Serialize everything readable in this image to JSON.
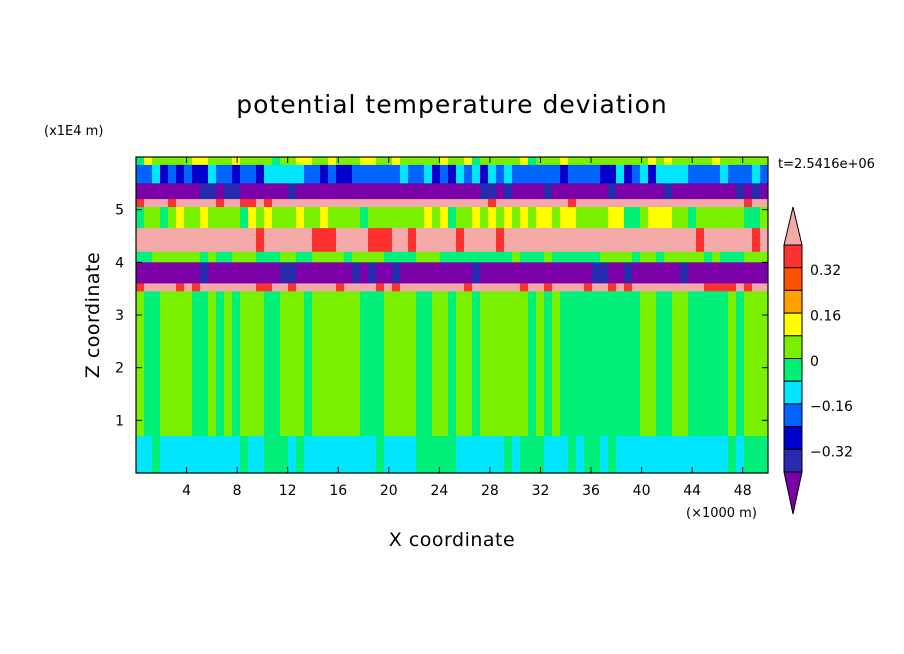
{
  "chart_data": {
    "type": "heatmap",
    "title": "potential temperature deviation",
    "xlabel": "X coordinate",
    "ylabel": "Z coordinate",
    "x_unit": "(×1000 m)",
    "y_unit": "(x1E4 m)",
    "time_label": "t=2.5416e+06",
    "xlim": [
      0,
      50
    ],
    "ylim": [
      0,
      6
    ],
    "x_ticks": [
      4,
      8,
      12,
      16,
      20,
      24,
      28,
      32,
      36,
      40,
      44,
      48
    ],
    "y_ticks": [
      1,
      2,
      3,
      4,
      5
    ],
    "colorbar": {
      "levels": [
        -0.4,
        -0.32,
        -0.24,
        -0.16,
        -0.08,
        0,
        0.08,
        0.16,
        0.24,
        0.32,
        0.4
      ],
      "tick_values": [
        "0.32",
        "0.16",
        "0",
        "−0.16",
        "−0.32"
      ],
      "colors": [
        "#7a00a8",
        "#2a2ab0",
        "#0000cc",
        "#0064ff",
        "#00e6ff",
        "#00f07a",
        "#78f000",
        "#ffff00",
        "#ffa000",
        "#ff5000",
        "#ff3030",
        "#f4a8a8"
      ],
      "extend": "both"
    },
    "bands": [
      {
        "z": [
          5.85,
          6.0
        ],
        "value": 0.05
      },
      {
        "z": [
          5.5,
          5.85
        ],
        "value": -0.2
      },
      {
        "z": [
          5.2,
          5.5
        ],
        "value": -0.44
      },
      {
        "z": [
          5.05,
          5.2
        ],
        "value": 0.44
      },
      {
        "z": [
          4.65,
          5.05
        ],
        "value": 0.05
      },
      {
        "z": [
          4.2,
          4.65
        ],
        "value": 0.44
      },
      {
        "z": [
          4.0,
          4.2
        ],
        "value": 0.0
      },
      {
        "z": [
          3.6,
          4.0
        ],
        "value": -0.44
      },
      {
        "z": [
          3.45,
          3.6
        ],
        "value": 0.44
      },
      {
        "z": [
          0.7,
          3.45
        ],
        "value": 0.0
      },
      {
        "z": [
          0.0,
          0.7
        ],
        "value": -0.1
      }
    ]
  },
  "colors": {
    "background": "#ffffff",
    "axis": "#000000"
  }
}
